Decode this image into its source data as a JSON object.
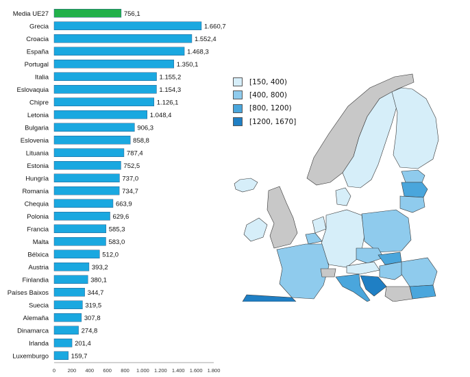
{
  "chart_data": {
    "type": "bar",
    "orientation": "horizontal",
    "categories": [
      "Media UE27",
      "Grecia",
      "Croacia",
      "España",
      "Portugal",
      "Italia",
      "Eslovaquia",
      "Chipre",
      "Letonia",
      "Bulgaria",
      "Eslovenia",
      "Lituania",
      "Estonia",
      "Hungría",
      "Romanía",
      "Chequia",
      "Polonia",
      "Francia",
      "Malta",
      "Bélxica",
      "Austria",
      "Finlandia",
      "Países Baixos",
      "Suecia",
      "Alemaña",
      "Dinamarca",
      "Irlanda",
      "Luxemburgo"
    ],
    "values": [
      756.1,
      1660.7,
      1552.4,
      1468.3,
      1350.1,
      1155.2,
      1154.3,
      1126.1,
      1048.4,
      906.3,
      858.8,
      787.4,
      752.5,
      737.0,
      734.7,
      663.9,
      629.6,
      585.3,
      583.0,
      512.0,
      393.2,
      380.1,
      344.7,
      319.5,
      307.8,
      274.8,
      201.4,
      159.7
    ],
    "value_labels": [
      "756,1",
      "1.660,7",
      "1.552,4",
      "1.468,3",
      "1.350,1",
      "1.155,2",
      "1.154,3",
      "1.126,1",
      "1.048,4",
      "906,3",
      "858,8",
      "787,4",
      "752,5",
      "737,0",
      "734,7",
      "663,9",
      "629,6",
      "585,3",
      "583,0",
      "512,0",
      "393,2",
      "380,1",
      "344,7",
      "319,5",
      "307,8",
      "274,8",
      "201,4",
      "159,7"
    ],
    "xlim": [
      0,
      1800
    ],
    "x_ticks": [
      0,
      200,
      400,
      600,
      800,
      1000,
      1200,
      1400,
      1600,
      1800
    ],
    "x_tick_labels": [
      "0",
      "200",
      "400",
      "600",
      "800",
      "1.000",
      "1.200",
      "1.400",
      "1.600",
      "1.800"
    ],
    "grid": false,
    "colors": {
      "average": "#21b14a",
      "bar": "#1aa8e0",
      "bar_border": "#2a5c8a"
    }
  },
  "map_legend": {
    "placement": "top-left of map",
    "items": [
      {
        "label": "[150, 400)",
        "color": "#d6eef9"
      },
      {
        "label": "[400, 800)",
        "color": "#8fcbed"
      },
      {
        "label": "[800, 1200)",
        "color": "#4aa6dc"
      },
      {
        "label": "[1200, 1670]",
        "color": "#1f7fc4"
      }
    ],
    "no_data_color": "#c8c8c8"
  }
}
